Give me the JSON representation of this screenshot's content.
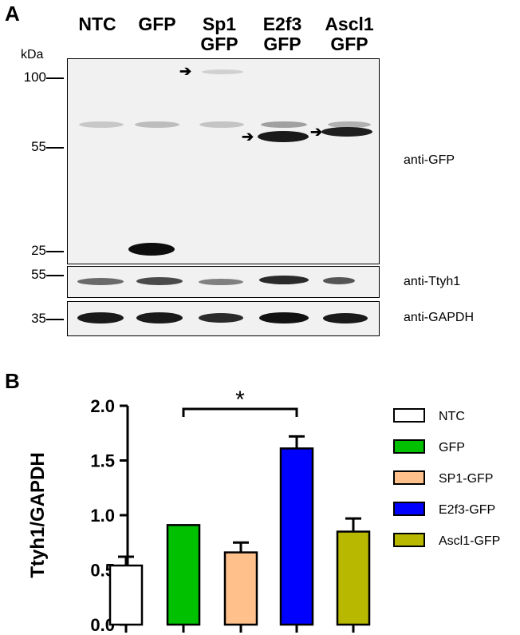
{
  "panel_a": {
    "letter": "A",
    "kda_label": "kDa",
    "lanes": [
      {
        "line1": "NTC",
        "line2": ""
      },
      {
        "line1": "GFP",
        "line2": ""
      },
      {
        "line1": "Sp1",
        "line2": "GFP"
      },
      {
        "line1": "E2f3",
        "line2": "GFP"
      },
      {
        "line1": "Ascl1",
        "line2": "GFP"
      }
    ],
    "blots": [
      {
        "antibody": "anti-GFP",
        "markers": [
          "100",
          "55",
          "25"
        ]
      },
      {
        "antibody": "anti-Ttyh1",
        "markers": [
          "55"
        ]
      },
      {
        "antibody": "anti-GAPDH",
        "markers": [
          "35"
        ]
      }
    ]
  },
  "panel_b": {
    "letter": "B",
    "significance": "*"
  },
  "chart_data": {
    "type": "bar",
    "categories": [
      "NTC",
      "GFP",
      "SP1-GFP",
      "E2f3-GFP",
      "Ascl1-GFP"
    ],
    "values": [
      0.54,
      0.91,
      0.66,
      1.61,
      0.85
    ],
    "errors": [
      0.08,
      0.0,
      0.09,
      0.11,
      0.12
    ],
    "colors": [
      "#ffffff",
      "#00c000",
      "#ffc08c",
      "#0000ff",
      "#b8b800"
    ],
    "ylabel": "Ttyh1/GAPDH",
    "ylim": [
      0,
      2.0
    ],
    "yticks": [
      "0.0",
      "0.5",
      "1.0",
      "1.5",
      "2.0"
    ],
    "legend": [
      "NTC",
      "GFP",
      "SP1-GFP",
      "E2f3-GFP",
      "Ascl1-GFP"
    ],
    "legend_position": "right",
    "grid": false
  }
}
